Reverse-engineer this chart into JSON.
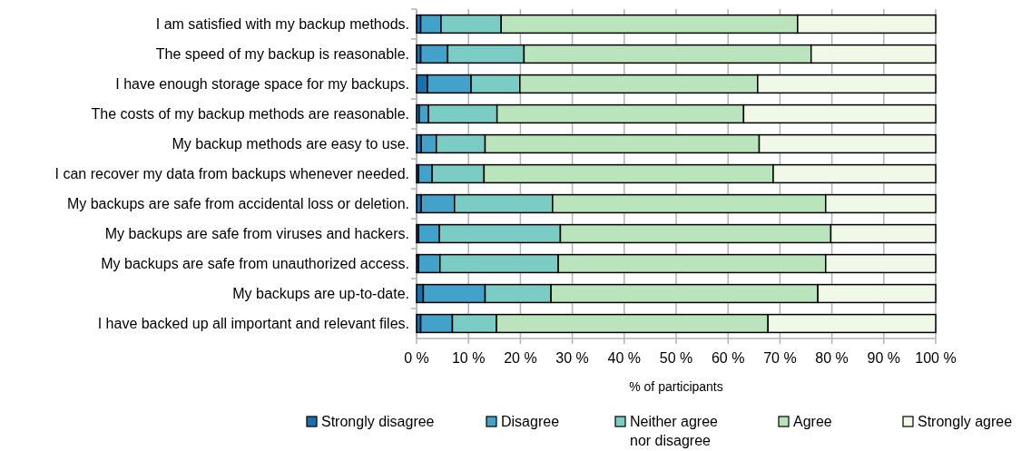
{
  "chart_data": {
    "type": "bar",
    "orientation": "horizontal",
    "stacked": true,
    "categories": [
      "I am satisfied with my backup methods.",
      "The speed of my backup is reasonable.",
      "I have enough storage space for my backups.",
      "The costs of my backup methods are reasonable.",
      "My backup methods are easy to use.",
      "I can recover my data from backups whenever needed.",
      "My backups are safe from accidental loss or deletion.",
      "My backups are safe from viruses and hackers.",
      "My backups are safe from unauthorized access.",
      "My backups are up-to-date.",
      "I have backed up all important and relevant files."
    ],
    "series": [
      {
        "name": "Strongly disagree",
        "color": "#1a6fad",
        "values": [
          0.8,
          0.8,
          2.1,
          0.5,
          0.9,
          0.4,
          0.9,
          0.4,
          0.4,
          1.3,
          0.8
        ]
      },
      {
        "name": "Disagree",
        "color": "#43a2ca",
        "values": [
          3.9,
          5.2,
          8.4,
          1.8,
          2.9,
          2.6,
          6.4,
          4.0,
          4.1,
          11.9,
          6.1
        ]
      },
      {
        "name": "Neither agree nor disagree",
        "color": "#7bccc4",
        "values": [
          11.6,
          14.7,
          9.4,
          13.2,
          9.4,
          10.0,
          18.9,
          23.3,
          22.8,
          12.7,
          8.5
        ]
      },
      {
        "name": "Agree",
        "color": "#bae4bc",
        "values": [
          57.1,
          55.3,
          45.8,
          47.5,
          52.8,
          55.7,
          52.6,
          52.1,
          51.5,
          51.4,
          52.3
        ]
      },
      {
        "name": "Strongly agree",
        "color": "#f0f9e8",
        "values": [
          26.6,
          24.0,
          34.3,
          37.0,
          34.0,
          31.3,
          21.2,
          20.2,
          21.2,
          22.7,
          32.3
        ]
      }
    ],
    "xlim": [
      0,
      100
    ],
    "xticks": [
      {
        "value": 0,
        "label": "0 %"
      },
      {
        "value": 10,
        "label": "10 %"
      },
      {
        "value": 20,
        "label": "20 %"
      },
      {
        "value": 30,
        "label": "30 %"
      },
      {
        "value": 40,
        "label": "40 %"
      },
      {
        "value": 50,
        "label": "50 %"
      },
      {
        "value": 60,
        "label": "60 %"
      },
      {
        "value": 70,
        "label": "70 %"
      },
      {
        "value": 80,
        "label": "80 %"
      },
      {
        "value": 90,
        "label": "90 %"
      },
      {
        "value": 100,
        "label": "100 %"
      }
    ],
    "xlabel": "% of participants",
    "grid": "x",
    "legend": "bottom"
  }
}
